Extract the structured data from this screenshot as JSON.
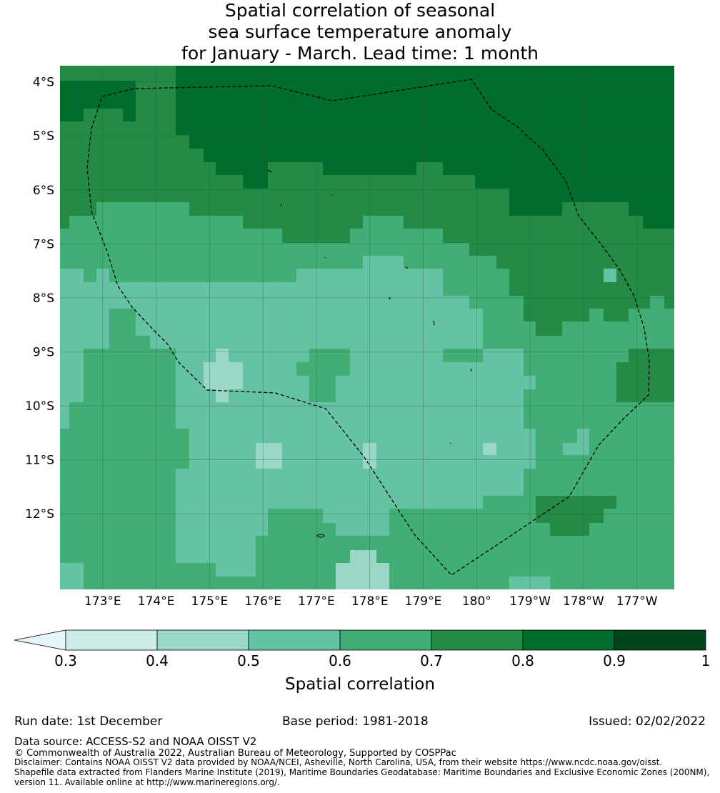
{
  "title": {
    "line1": "Spatial correlation of seasonal",
    "line2": "sea surface temperature anomaly",
    "line3": "for January - March. Lead time: 1 month"
  },
  "map": {
    "lon_labels": [
      "173°E",
      "174°E",
      "175°E",
      "176°E",
      "177°E",
      "178°E",
      "179°E",
      "180°",
      "179°W",
      "178°W",
      "177°W"
    ],
    "lat_labels": [
      "4°S",
      "5°S",
      "6°S",
      "7°S",
      "8°S",
      "9°S",
      "10°S",
      "11°S",
      "12°S"
    ],
    "lon_values": [
      173,
      174,
      175,
      176,
      177,
      178,
      179,
      180,
      181,
      182,
      183
    ],
    "lat_values": [
      -4,
      -5,
      -6,
      -7,
      -8,
      -9,
      -10,
      -11,
      -12
    ],
    "lon_range": [
      172.2,
      183.7
    ],
    "lat_range": [
      -13.4,
      -3.7
    ],
    "colors": {
      "c04_05": "#99d8c9",
      "c05_06": "#66c2a4",
      "c06_07": "#41ae76",
      "c07_08": "#238b45",
      "c08_09": "#006d2c",
      "gridline": "#2a5a3a",
      "boundary": "#000000"
    }
  },
  "colorbar": {
    "label": "Spatial correlation",
    "ticks": [
      "0.3",
      "0.4",
      "0.5",
      "0.6",
      "0.7",
      "0.8",
      "0.9",
      "1"
    ],
    "colors": [
      "#e5f5f9",
      "#ccece6",
      "#99d8c9",
      "#66c2a4",
      "#41ae76",
      "#238b45",
      "#006d2c",
      "#00441b"
    ]
  },
  "footer": {
    "run_date": "Run date: 1st December",
    "base_period": "Base period: 1981-2018",
    "issued": "Issued: 02/02/2022",
    "data_source": "Data source: ACCESS-S2 and NOAA OISST V2",
    "copyright": "© Commonwealth of Australia 2022, Australian Bureau of Meteorology, Supported by COSPPac",
    "disclaimer": "Disclaimer: Contains NOAA OISST V2 data provided by NOAA/NCEI, Asheville, North Carolina, USA, from their website https://www.ncdc.noaa.gov/oisst.",
    "shapefile1": "Shapefile data extracted from Flanders Marine Institute (2019), Maritime Boundaries Geodatabase: Maritime Boundaries and Exclusive Economic Zones (200NM),",
    "shapefile2": "version 11. Available online at http://www.marineregions.org/."
  }
}
